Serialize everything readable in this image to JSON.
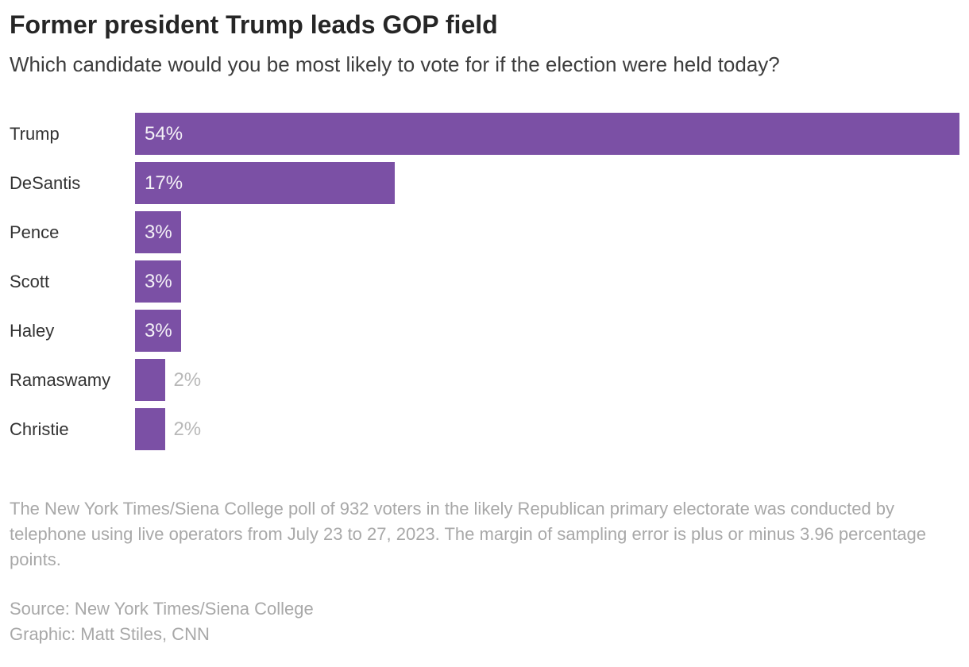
{
  "header": {
    "title": "Former president Trump leads GOP field",
    "subtitle": "Which candidate would you be most likely to vote for if the election were held today?"
  },
  "chart_data": {
    "type": "bar",
    "orientation": "horizontal",
    "title": "Former president Trump leads GOP field",
    "subtitle": "Which candidate would you be most likely to vote for if the election were held today?",
    "categories": [
      "Trump",
      "DeSantis",
      "Pence",
      "Scott",
      "Haley",
      "Ramaswamy",
      "Christie"
    ],
    "values": [
      54,
      17,
      3,
      3,
      3,
      2,
      2
    ],
    "value_labels": [
      "54%",
      "17%",
      "3%",
      "3%",
      "3%",
      "2%",
      "2%"
    ],
    "label_inside": [
      true,
      true,
      true,
      true,
      true,
      false,
      false
    ],
    "xlim": [
      0,
      54
    ],
    "grid": "off",
    "legend": "none",
    "bar_color": "#7b50a5",
    "inside_label_color": "#f4f1f7",
    "outside_label_color": "#b8b8b8"
  },
  "footer": {
    "note": "The New York Times/Siena College poll of 932 voters in the likely Republican primary electorate was conducted by telephone using live operators from July 23 to 27, 2023. The margin of sampling error is plus or minus 3.96 percentage points.",
    "source": "Source: New York Times/Siena College",
    "graphic": "Graphic: Matt Stiles, CNN"
  },
  "colors": {
    "title_text": "#262626",
    "subtitle_text": "#3d3d3d",
    "category_text": "#333333",
    "footer_text": "#a8a8a8",
    "background": "#ffffff"
  }
}
